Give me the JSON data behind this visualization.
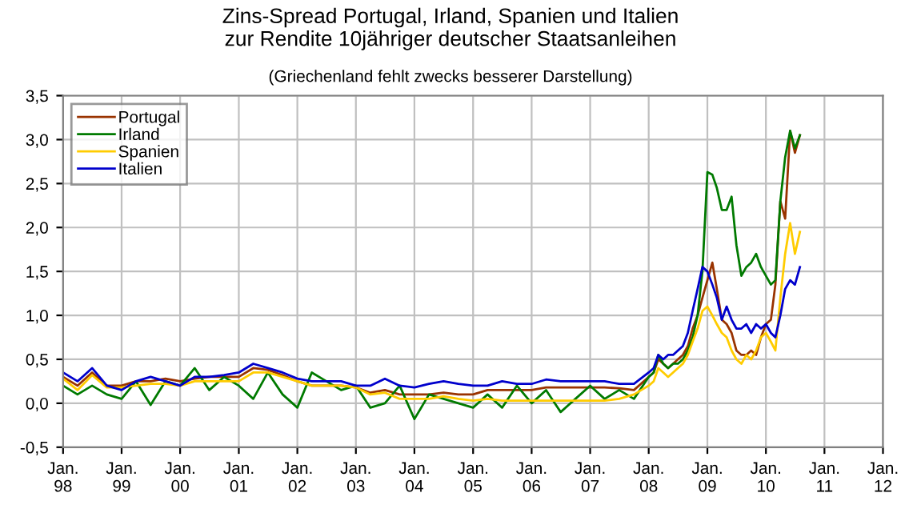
{
  "chart_data": {
    "type": "line",
    "title": "Zins-Spread Portugal, Irland, Spanien und Italien\nzur Rendite 10jähriger deutscher Staatsanleihen",
    "subtitle": "(Griechenland fehlt zwecks besserer Darstellung)",
    "x": [
      "1998-01",
      "1998-04",
      "1998-07",
      "1998-10",
      "1999-01",
      "1999-04",
      "1999-07",
      "1999-10",
      "2000-01",
      "2000-04",
      "2000-07",
      "2000-10",
      "2001-01",
      "2001-04",
      "2001-07",
      "2001-10",
      "2002-01",
      "2002-04",
      "2002-07",
      "2002-10",
      "2003-01",
      "2003-04",
      "2003-07",
      "2003-10",
      "2004-01",
      "2004-04",
      "2004-07",
      "2004-10",
      "2005-01",
      "2005-04",
      "2005-07",
      "2005-10",
      "2006-01",
      "2006-04",
      "2006-07",
      "2006-10",
      "2007-01",
      "2007-04",
      "2007-07",
      "2007-10",
      "2008-01",
      "2008-02",
      "2008-03",
      "2008-04",
      "2008-05",
      "2008-06",
      "2008-07",
      "2008-08",
      "2008-09",
      "2008-10",
      "2008-11",
      "2008-12",
      "2009-01",
      "2009-02",
      "2009-03",
      "2009-04",
      "2009-05",
      "2009-06",
      "2009-07",
      "2009-08",
      "2009-09",
      "2009-10",
      "2009-11",
      "2009-12",
      "2010-01",
      "2010-02",
      "2010-03",
      "2010-04",
      "2010-05",
      "2010-06",
      "2010-07",
      "2010-08"
    ],
    "series": [
      {
        "name": "Portugal",
        "color": "#993300",
        "values": [
          0.3,
          0.2,
          0.35,
          0.2,
          0.2,
          0.25,
          0.25,
          0.28,
          0.25,
          0.28,
          0.3,
          0.3,
          0.3,
          0.4,
          0.38,
          0.32,
          0.25,
          0.2,
          0.2,
          0.2,
          0.18,
          0.12,
          0.15,
          0.1,
          0.1,
          0.1,
          0.12,
          0.1,
          0.1,
          0.15,
          0.15,
          0.15,
          0.15,
          0.18,
          0.18,
          0.18,
          0.18,
          0.18,
          0.17,
          0.15,
          0.3,
          0.35,
          0.5,
          0.45,
          0.4,
          0.45,
          0.5,
          0.55,
          0.65,
          0.85,
          1.0,
          1.2,
          1.4,
          1.6,
          1.3,
          0.95,
          0.9,
          0.8,
          0.6,
          0.55,
          0.55,
          0.6,
          0.55,
          0.75,
          0.9,
          0.95,
          1.35,
          2.3,
          2.1,
          3.1,
          2.85,
          3.05
        ]
      },
      {
        "name": "Irland",
        "color": "#007a00",
        "values": [
          0.2,
          0.1,
          0.2,
          0.1,
          0.05,
          0.25,
          -0.02,
          0.25,
          0.2,
          0.4,
          0.15,
          0.3,
          0.2,
          0.05,
          0.35,
          0.1,
          -0.05,
          0.35,
          0.25,
          0.15,
          0.2,
          -0.05,
          0.0,
          0.2,
          -0.18,
          0.1,
          0.05,
          0.0,
          -0.05,
          0.1,
          -0.05,
          0.2,
          0.0,
          0.15,
          -0.1,
          0.05,
          0.2,
          0.05,
          0.15,
          0.05,
          0.3,
          0.35,
          0.55,
          0.45,
          0.4,
          0.45,
          0.45,
          0.5,
          0.6,
          0.75,
          1.0,
          1.5,
          2.63,
          2.6,
          2.45,
          2.2,
          2.2,
          2.35,
          1.8,
          1.45,
          1.55,
          1.6,
          1.7,
          1.55,
          1.45,
          1.35,
          1.4,
          2.3,
          2.8,
          3.1,
          2.9,
          3.05
        ]
      },
      {
        "name": "Spanien",
        "color": "#ffcc00",
        "values": [
          0.28,
          0.15,
          0.32,
          0.18,
          0.18,
          0.2,
          0.22,
          0.22,
          0.2,
          0.25,
          0.25,
          0.25,
          0.25,
          0.35,
          0.35,
          0.3,
          0.25,
          0.2,
          0.2,
          0.2,
          0.18,
          0.1,
          0.12,
          0.05,
          0.05,
          0.05,
          0.08,
          0.05,
          0.03,
          0.05,
          0.03,
          0.03,
          0.03,
          0.03,
          0.03,
          0.03,
          0.03,
          0.03,
          0.05,
          0.1,
          0.2,
          0.25,
          0.4,
          0.35,
          0.3,
          0.35,
          0.4,
          0.45,
          0.55,
          0.7,
          0.85,
          1.05,
          1.1,
          1.0,
          0.9,
          0.8,
          0.75,
          0.6,
          0.5,
          0.45,
          0.55,
          0.5,
          0.6,
          0.75,
          0.8,
          0.7,
          0.6,
          1.2,
          1.7,
          2.05,
          1.7,
          1.95
        ]
      },
      {
        "name": "Italien",
        "color": "#0000cc",
        "values": [
          0.35,
          0.25,
          0.4,
          0.2,
          0.15,
          0.25,
          0.3,
          0.25,
          0.2,
          0.3,
          0.3,
          0.32,
          0.35,
          0.45,
          0.4,
          0.35,
          0.28,
          0.25,
          0.25,
          0.25,
          0.2,
          0.2,
          0.28,
          0.2,
          0.18,
          0.22,
          0.25,
          0.22,
          0.2,
          0.2,
          0.25,
          0.22,
          0.22,
          0.27,
          0.25,
          0.25,
          0.25,
          0.25,
          0.22,
          0.22,
          0.35,
          0.4,
          0.55,
          0.5,
          0.55,
          0.55,
          0.6,
          0.65,
          0.8,
          1.05,
          1.3,
          1.55,
          1.5,
          1.35,
          1.2,
          0.95,
          1.1,
          0.95,
          0.85,
          0.85,
          0.9,
          0.8,
          0.9,
          0.85,
          0.9,
          0.8,
          0.75,
          1.0,
          1.3,
          1.4,
          1.35,
          1.55
        ]
      }
    ],
    "xlim": [
      "1998-01",
      "2012-01"
    ],
    "xticks": [
      {
        "value": "1998-01",
        "label": "Jan.\n98"
      },
      {
        "value": "1999-01",
        "label": "Jan.\n99"
      },
      {
        "value": "2000-01",
        "label": "Jan.\n00"
      },
      {
        "value": "2001-01",
        "label": "Jan.\n01"
      },
      {
        "value": "2002-01",
        "label": "Jan.\n02"
      },
      {
        "value": "2003-01",
        "label": "Jan.\n03"
      },
      {
        "value": "2004-01",
        "label": "Jan.\n04"
      },
      {
        "value": "2005-01",
        "label": "Jan.\n05"
      },
      {
        "value": "2006-01",
        "label": "Jan.\n06"
      },
      {
        "value": "2007-01",
        "label": "Jan.\n07"
      },
      {
        "value": "2008-01",
        "label": "Jan.\n08"
      },
      {
        "value": "2009-01",
        "label": "Jan.\n09"
      },
      {
        "value": "2010-01",
        "label": "Jan.\n10"
      },
      {
        "value": "2011-01",
        "label": "Jan.\n11"
      },
      {
        "value": "2012-01",
        "label": "Jan.\n12"
      }
    ],
    "ylim": [
      -0.5,
      3.5
    ],
    "yticks": [
      {
        "value": -0.5,
        "label": "-0,5"
      },
      {
        "value": 0,
        "label": "0,0"
      },
      {
        "value": 0.5,
        "label": "0,5"
      },
      {
        "value": 1,
        "label": "1,0"
      },
      {
        "value": 1.5,
        "label": "1,5"
      },
      {
        "value": 2,
        "label": "2,0"
      },
      {
        "value": 2.5,
        "label": "2,5"
      },
      {
        "value": 3,
        "label": "3,0"
      },
      {
        "value": 3.5,
        "label": "3,5"
      }
    ],
    "grid": true,
    "legend": "top left",
    "line_style": "solid",
    "marker": "none"
  }
}
